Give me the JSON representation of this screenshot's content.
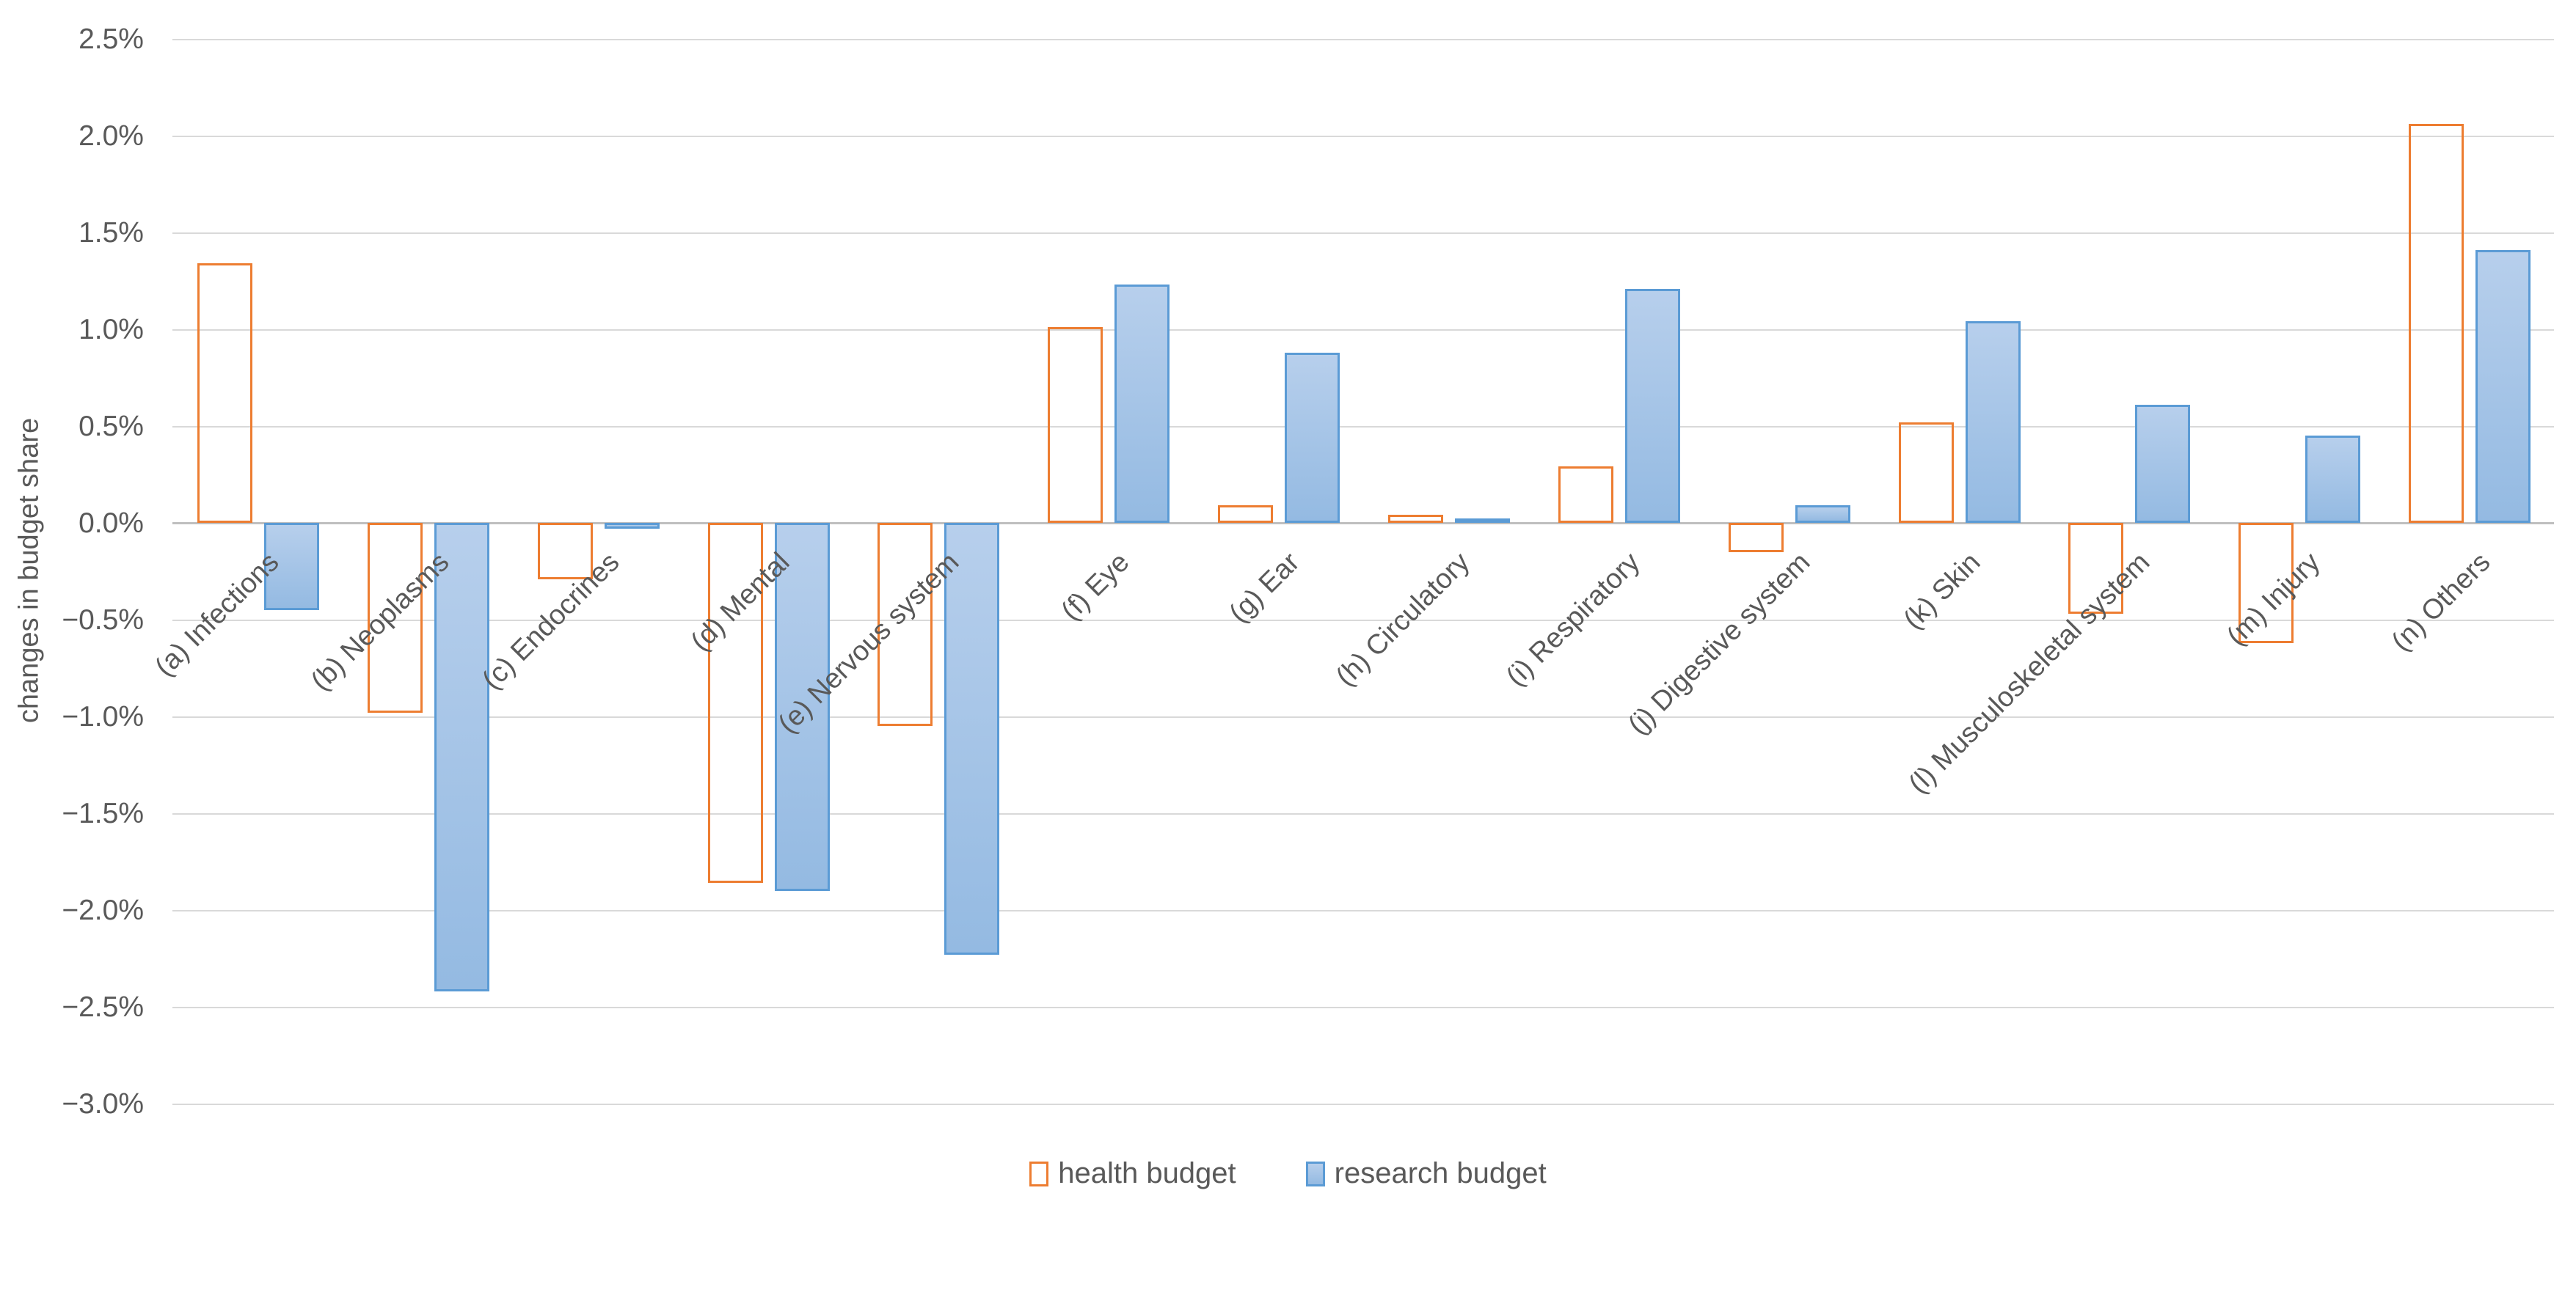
{
  "chart_data": {
    "type": "bar",
    "title": "",
    "xlabel": "",
    "ylabel": "changes in budget share",
    "categories": [
      "(a) Infections",
      "(b) Neoplasms",
      "(c) Endocrines",
      "(d) Mental",
      "(e) Nervous system",
      "(f) Eye",
      "(g) Ear",
      "(h) Circulatory",
      "(i) Respiratory",
      "(j) Digestive system",
      "(k) Skin",
      "(l) Musculoskeletal system",
      "(m) Injury",
      "(n) Others"
    ],
    "series": [
      {
        "name": "health budget",
        "values": [
          1.34,
          -0.98,
          -0.29,
          -1.86,
          -1.05,
          1.01,
          0.09,
          0.04,
          0.29,
          -0.15,
          0.52,
          -0.47,
          -0.62,
          2.06
        ],
        "fill_top": "#F8D2BC",
        "fill_bottom": "#F2B astonished",
        "fill": "#F5C4A3",
        "border": "#ED7D31"
      },
      {
        "name": "research budget",
        "values": [
          -0.45,
          -2.42,
          -0.03,
          -1.9,
          -2.23,
          1.23,
          0.88,
          0.01,
          1.21,
          0.09,
          1.04,
          0.61,
          0.45,
          1.41
        ],
        "fill_top": "#B7CFEC",
        "fill_bottom": "#94BAE2",
        "fill": "#A6C5E8",
        "border": "#5B9BD5"
      }
    ],
    "ylim": [
      -3.0,
      2.5
    ],
    "ytick_step": 0.5,
    "yticks": [
      "2.5%",
      "2.0%",
      "1.5%",
      "1.0%",
      "0.5%",
      "0.0%",
      "−0.5%",
      "−1.0%",
      "−1.5%",
      "−2.0%",
      "−2.5%",
      "−3.0%"
    ],
    "grid": true,
    "legend_position": "bottom",
    "colors": {
      "gridline": "#D9D9D9",
      "axisline": "#BFBFBF",
      "text": "#595959"
    }
  }
}
